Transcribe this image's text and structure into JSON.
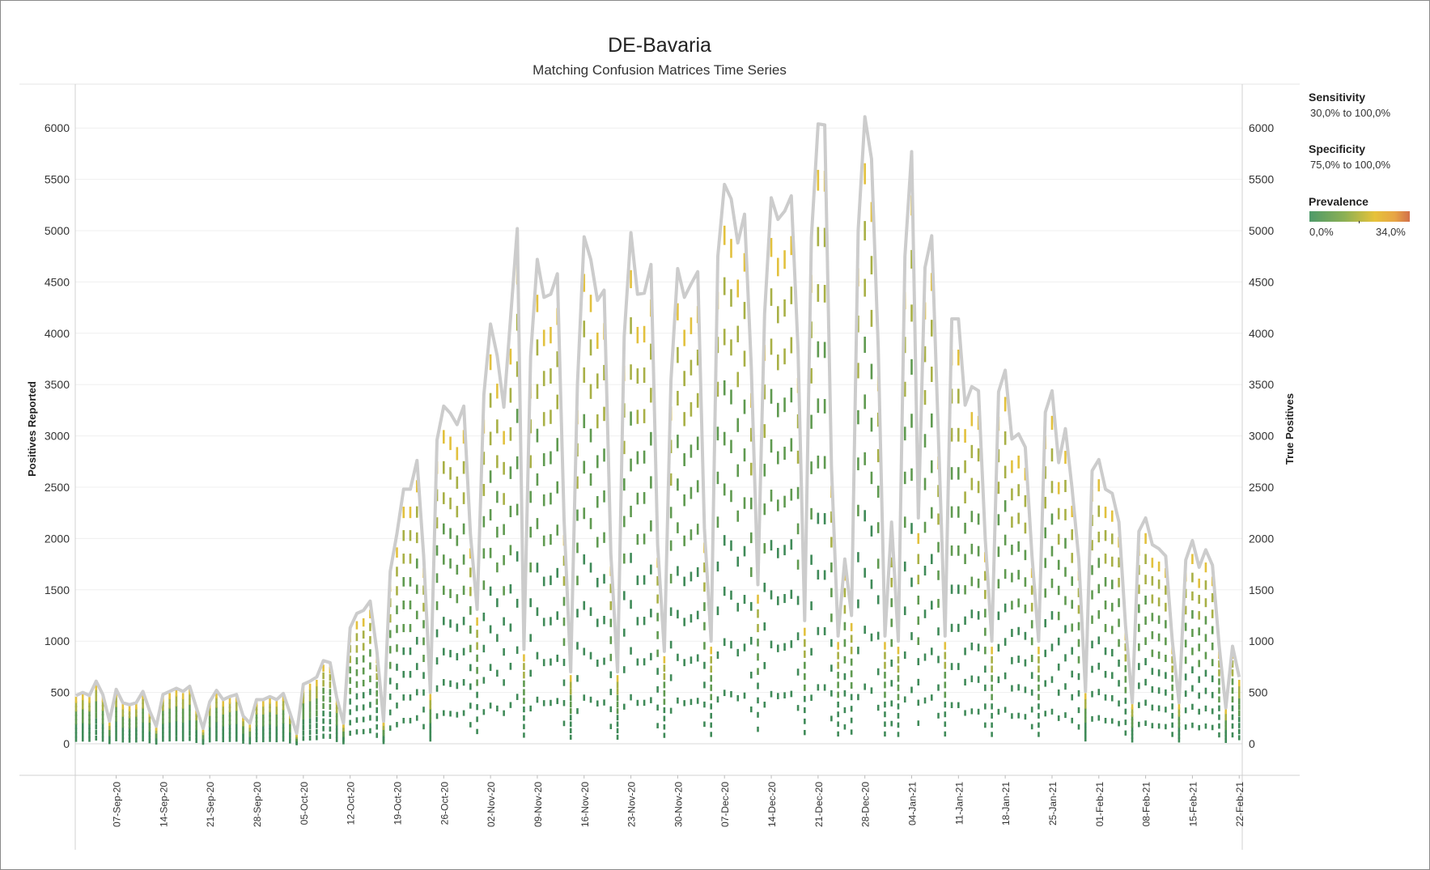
{
  "title": "DE-Bavaria",
  "subtitle": "Matching Confusion Matrices Time Series",
  "legend": {
    "sensitivity": {
      "label": "Sensitivity",
      "value": "30,0% to 100,0%"
    },
    "specificity": {
      "label": "Specificity",
      "value": "75,0% to 100,0%"
    },
    "prevalence": {
      "label": "Prevalence",
      "min": "0,0%",
      "max": "34,0%",
      "colors": [
        "#4e9a6a",
        "#8cb054",
        "#e6c23a",
        "#e7a545",
        "#d2704a"
      ]
    }
  },
  "chart_data": {
    "type": "line",
    "ylabel_left": "Positives Reported",
    "ylabel_right": "True Positives",
    "ylim": [
      0,
      6400
    ],
    "yticks": [
      0,
      500,
      1000,
      1500,
      2000,
      2500,
      3000,
      3500,
      4000,
      4500,
      5000,
      5500,
      6000
    ],
    "xticks": [
      "07-Sep-20",
      "14-Sep-20",
      "21-Sep-20",
      "28-Sep-20",
      "05-Oct-20",
      "12-Oct-20",
      "19-Oct-20",
      "26-Oct-20",
      "02-Nov-20",
      "09-Nov-20",
      "16-Nov-20",
      "23-Nov-20",
      "30-Nov-20",
      "07-Dec-20",
      "14-Dec-20",
      "21-Dec-20",
      "28-Dec-20",
      "04-Jan-21",
      "11-Jan-21",
      "18-Jan-21",
      "25-Jan-21",
      "01-Feb-21",
      "08-Feb-21",
      "15-Feb-21",
      "22-Feb-21"
    ],
    "start_date": "2020-09-01",
    "line_color": "#cccccc",
    "series": [
      {
        "values": [
          470,
          500,
          470,
          610,
          480,
          220,
          530,
          400,
          380,
          400,
          510,
          320,
          170,
          480,
          510,
          540,
          510,
          560,
          350,
          150,
          410,
          520,
          430,
          460,
          480,
          270,
          200,
          430,
          430,
          460,
          430,
          490,
          300,
          100,
          580,
          610,
          650,
          810,
          790,
          450,
          200,
          1130,
          1270,
          1300,
          1390,
          900,
          220,
          1680,
          2050,
          2480,
          2480,
          2760,
          1830,
          500,
          2960,
          3290,
          3220,
          3110,
          3290,
          2040,
          1310,
          3400,
          4090,
          3780,
          3280,
          4150,
          5020,
          920,
          3780,
          4720,
          4350,
          4380,
          4580,
          2180,
          700,
          3500,
          4940,
          4720,
          4320,
          4420,
          1850,
          700,
          3970,
          4980,
          4380,
          4390,
          4670,
          1940,
          900,
          3540,
          4630,
          4350,
          4480,
          4600,
          2100,
          1000,
          4750,
          5450,
          5310,
          4880,
          5160,
          3680,
          1550,
          4190,
          5320,
          5110,
          5190,
          5340,
          3840,
          1200,
          4930,
          6040,
          6030,
          2700,
          1050,
          1800,
          1250,
          5000,
          6110,
          5700,
          3860,
          1050,
          2160,
          1000,
          4750,
          5770,
          2200,
          4640,
          4950,
          3010,
          1050,
          4140,
          4140,
          3300,
          3480,
          3440,
          2000,
          1000,
          3430,
          3640,
          2970,
          3020,
          2890,
          1830,
          1000,
          3230,
          3440,
          2740,
          3070,
          2490,
          1800,
          510,
          2660,
          2770,
          2480,
          2440,
          2160,
          1150,
          400,
          2070,
          2200,
          1940,
          1900,
          1830,
          1000,
          400,
          1790,
          1980,
          1720,
          1890,
          1740,
          950,
          350,
          950,
          650
        ]
      }
    ],
    "confusion_matrix_bars": {
      "colors": [
        "#3f8a58",
        "#5f9a50",
        "#a8b046",
        "#e2c13e"
      ],
      "levels": 10
    }
  }
}
